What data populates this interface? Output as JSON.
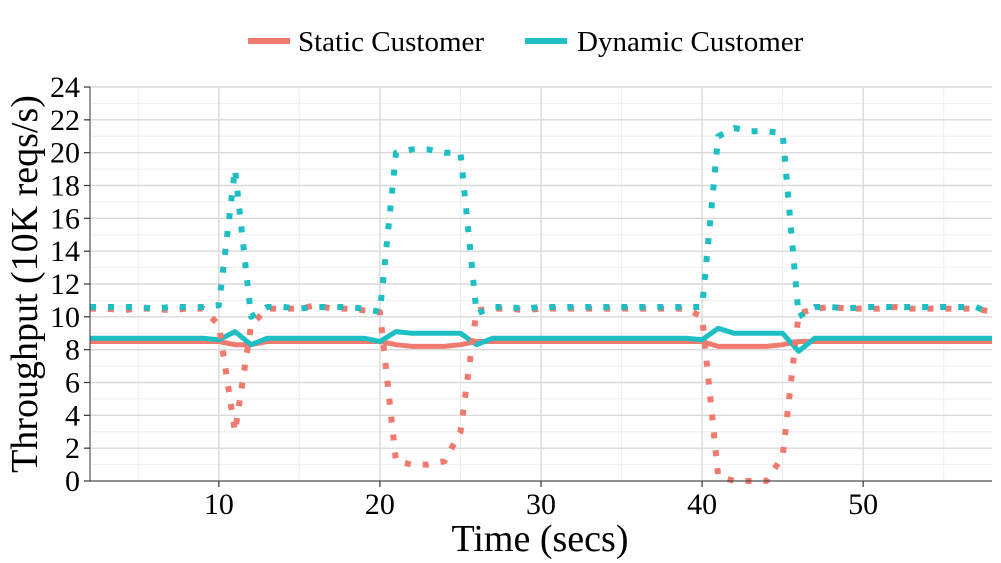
{
  "chart_data": {
    "type": "line",
    "title": "",
    "xlabel": "Time (secs)",
    "ylabel": "Throughput (10K reqs/s)",
    "xlim": [
      2,
      58
    ],
    "ylim": [
      0,
      24
    ],
    "x_ticks": [
      10,
      20,
      30,
      40,
      50
    ],
    "y_ticks": [
      0,
      2,
      4,
      6,
      8,
      10,
      12,
      14,
      16,
      18,
      20,
      22,
      24
    ],
    "grid": true,
    "legend_position": "top",
    "legend": [
      {
        "name": "Static Customer",
        "color": "#F07A6E"
      },
      {
        "name": "Dynamic Customer",
        "color": "#1EBFC4"
      }
    ],
    "x": [
      2,
      3,
      4,
      5,
      6,
      7,
      8,
      9,
      10,
      11,
      12,
      13,
      14,
      15,
      16,
      17,
      18,
      19,
      20,
      21,
      22,
      23,
      24,
      25,
      26,
      27,
      28,
      29,
      30,
      31,
      32,
      33,
      34,
      35,
      36,
      37,
      38,
      39,
      40,
      41,
      42,
      43,
      44,
      45,
      46,
      47,
      48,
      49,
      50,
      51,
      52,
      53,
      54,
      55,
      56,
      57,
      58
    ],
    "series": [
      {
        "name": "Static Customer (solid)",
        "legend": "Static Customer",
        "style": "solid",
        "color": "#F07A6E",
        "values": [
          8.5,
          8.5,
          8.5,
          8.5,
          8.5,
          8.5,
          8.5,
          8.5,
          8.5,
          8.3,
          8.3,
          8.5,
          8.5,
          8.5,
          8.5,
          8.5,
          8.5,
          8.5,
          8.5,
          8.3,
          8.2,
          8.2,
          8.2,
          8.3,
          8.5,
          8.5,
          8.5,
          8.5,
          8.5,
          8.5,
          8.5,
          8.5,
          8.5,
          8.5,
          8.5,
          8.5,
          8.5,
          8.5,
          8.5,
          8.2,
          8.2,
          8.2,
          8.2,
          8.3,
          8.5,
          8.5,
          8.5,
          8.5,
          8.5,
          8.5,
          8.5,
          8.5,
          8.5,
          8.5,
          8.5,
          8.5,
          8.5
        ]
      },
      {
        "name": "Dynamic Customer (solid)",
        "legend": "Dynamic Customer",
        "style": "solid",
        "color": "#1EBFC4",
        "values": [
          8.7,
          8.7,
          8.7,
          8.7,
          8.7,
          8.7,
          8.7,
          8.7,
          8.6,
          9.1,
          8.3,
          8.7,
          8.7,
          8.7,
          8.7,
          8.7,
          8.7,
          8.7,
          8.5,
          9.1,
          9.0,
          9.0,
          9.0,
          9.0,
          8.3,
          8.7,
          8.7,
          8.7,
          8.7,
          8.7,
          8.7,
          8.7,
          8.7,
          8.7,
          8.7,
          8.7,
          8.7,
          8.7,
          8.6,
          9.3,
          9.0,
          9.0,
          9.0,
          9.0,
          7.9,
          8.7,
          8.7,
          8.7,
          8.7,
          8.7,
          8.7,
          8.7,
          8.7,
          8.7,
          8.7,
          8.7,
          8.7
        ]
      },
      {
        "name": "Static Customer (dotted)",
        "legend": "Static Customer",
        "style": "dotted",
        "color": "#F07A6E",
        "values": [
          10.5,
          10.5,
          10.4,
          10.5,
          10.5,
          10.4,
          10.5,
          10.5,
          9.5,
          3.0,
          9.5,
          10.5,
          10.5,
          10.5,
          10.7,
          10.5,
          10.5,
          10.4,
          10.3,
          1.2,
          1.0,
          1.0,
          1.2,
          3.0,
          10.4,
          10.5,
          10.5,
          10.4,
          10.5,
          10.5,
          10.5,
          10.5,
          10.5,
          10.5,
          10.5,
          10.5,
          10.5,
          10.5,
          10.0,
          0.3,
          0.0,
          0.0,
          0.0,
          1.5,
          10.2,
          10.5,
          10.6,
          10.5,
          10.5,
          10.5,
          10.6,
          10.5,
          10.5,
          10.5,
          10.5,
          10.5,
          10.3
        ]
      },
      {
        "name": "Dynamic Customer (dotted)",
        "legend": "Dynamic Customer",
        "style": "dotted",
        "color": "#1EBFC4",
        "values": [
          10.6,
          10.6,
          10.6,
          10.6,
          10.5,
          10.6,
          10.6,
          10.6,
          10.7,
          19.0,
          10.0,
          10.6,
          10.6,
          10.5,
          10.6,
          10.6,
          10.6,
          10.5,
          10.3,
          20.0,
          20.2,
          20.2,
          20.0,
          20.0,
          10.2,
          10.6,
          10.6,
          10.5,
          10.6,
          10.6,
          10.6,
          10.6,
          10.6,
          10.6,
          10.6,
          10.6,
          10.6,
          10.6,
          10.6,
          21.0,
          21.5,
          21.3,
          21.3,
          21.2,
          10.0,
          10.6,
          10.6,
          10.5,
          10.6,
          10.6,
          10.6,
          10.6,
          10.6,
          10.6,
          10.6,
          10.6,
          10.2
        ]
      }
    ]
  }
}
